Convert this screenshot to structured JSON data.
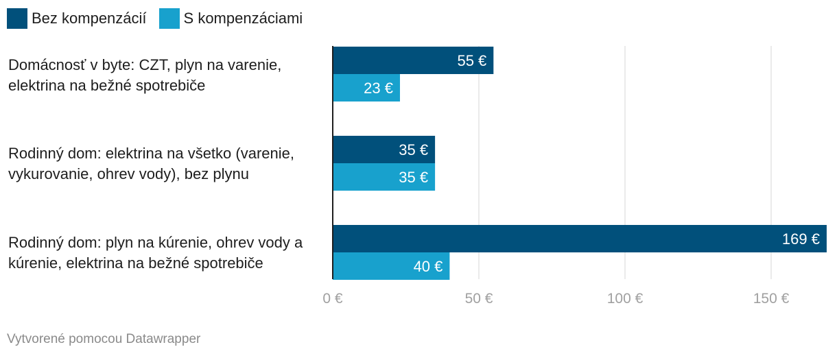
{
  "chart_data": {
    "type": "bar",
    "orientation": "horizontal",
    "categories": [
      "Domácnosť v byte: CZT, plyn na varenie, elektrina na bežné spotrebiče",
      "Rodinný dom: elektrina na všetko (varenie, vykurovanie, ohrev vody), bez plynu",
      "Rodinný dom: plyn na kúrenie, ohrev vody a kúrenie, elektrina na bežné spotrebiče"
    ],
    "category_lines": [
      [
        "Domácnosť v byte: CZT, plyn na varenie,",
        "elektrina na bežné spotrebiče"
      ],
      [
        "Rodinný dom: elektrina na všetko (varenie,",
        "vykurovanie, ohrev vody), bez plynu"
      ],
      [
        "Rodinný dom: plyn na kúrenie, ohrev vody a",
        "kúrenie, elektrina na bežné spotrebiče"
      ]
    ],
    "series": [
      {
        "name": "Bez kompenzácií",
        "color": "#01507b",
        "values": [
          55,
          35,
          169
        ],
        "labels": [
          "55 €",
          "35 €",
          "169 €"
        ]
      },
      {
        "name": "S kompenzáciami",
        "color": "#18a1cd",
        "values": [
          23,
          35,
          40
        ],
        "labels": [
          "23 €",
          "35 €",
          "40 €"
        ]
      }
    ],
    "xlim": [
      0,
      169
    ],
    "x_ticks": [
      0,
      50,
      100,
      150
    ],
    "x_tick_labels": [
      "0 €",
      "50 €",
      "100 €",
      "150 €"
    ],
    "grid": true,
    "legend": "top-left"
  },
  "footer": "Vytvorené pomocou Datawrapper"
}
